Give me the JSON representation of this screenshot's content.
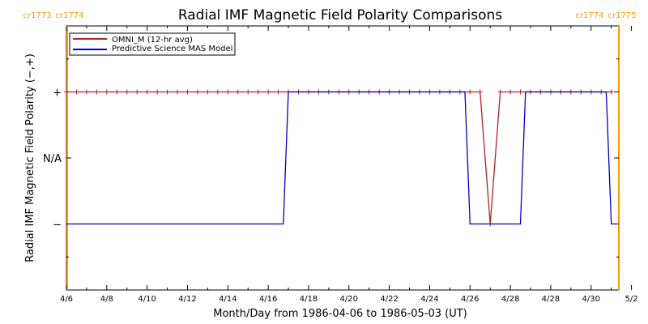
{
  "chart_data": {
    "type": "line",
    "title": "Radial IMF Magnetic Field Polarity Comparisons",
    "xlabel": "Month/Day from 1986-04-06 to 1986-05-03 (UT)",
    "ylabel": "Radial IMF Magnetic Field Polarity (−,+)",
    "xlim": [
      "1986-04-06",
      "1986-05-03"
    ],
    "ylim": [
      -2,
      2
    ],
    "y_ticks": [
      {
        "value": 1,
        "label": "+"
      },
      {
        "value": 0,
        "label": "N/A"
      },
      {
        "value": -1,
        "label": "−"
      }
    ],
    "x_ticks": [
      "4/6",
      "4/8",
      "4/10",
      "4/12",
      "4/14",
      "4/16",
      "4/18",
      "4/20",
      "4/22",
      "4/24",
      "4/26",
      "4/28",
      "4/28",
      "4/30",
      "5/2"
    ],
    "carrington_rotations": [
      {
        "date": "1986-04-06T01:00",
        "labels": [
          "cr1773",
          "cr1774"
        ],
        "label_side": "left"
      },
      {
        "date": "1986-05-03T09:00",
        "labels": [
          "cr1774",
          "cr1775"
        ],
        "label_side": "right"
      }
    ],
    "legend_position": "top-left",
    "series": [
      {
        "name": "OMNI_M (12-hr avg)",
        "color": "#b22222",
        "marker": "+",
        "points": [
          [
            "1986-04-06T00:00",
            1
          ],
          [
            "1986-04-06T12:00",
            1
          ],
          [
            "1986-04-07T00:00",
            1
          ],
          [
            "1986-04-07T12:00",
            1
          ],
          [
            "1986-04-08T00:00",
            1
          ],
          [
            "1986-04-08T12:00",
            1
          ],
          [
            "1986-04-09T00:00",
            1
          ],
          [
            "1986-04-09T12:00",
            1
          ],
          [
            "1986-04-10T00:00",
            1
          ],
          [
            "1986-04-10T12:00",
            1
          ],
          [
            "1986-04-11T00:00",
            1
          ],
          [
            "1986-04-11T12:00",
            1
          ],
          [
            "1986-04-12T00:00",
            1
          ],
          [
            "1986-04-12T12:00",
            1
          ],
          [
            "1986-04-13T00:00",
            1
          ],
          [
            "1986-04-13T12:00",
            1
          ],
          [
            "1986-04-14T00:00",
            1
          ],
          [
            "1986-04-14T12:00",
            1
          ],
          [
            "1986-04-15T00:00",
            1
          ],
          [
            "1986-04-15T12:00",
            1
          ],
          [
            "1986-04-16T00:00",
            1
          ],
          [
            "1986-04-16T12:00",
            1
          ],
          [
            "1986-04-17T00:00",
            1
          ],
          [
            "1986-04-17T12:00",
            1
          ],
          [
            "1986-04-18T00:00",
            1
          ],
          [
            "1986-04-18T12:00",
            1
          ],
          [
            "1986-04-19T00:00",
            1
          ],
          [
            "1986-04-19T12:00",
            1
          ],
          [
            "1986-04-20T00:00",
            1
          ],
          [
            "1986-04-20T12:00",
            1
          ],
          [
            "1986-04-21T00:00",
            1
          ],
          [
            "1986-04-21T12:00",
            1
          ],
          [
            "1986-04-22T00:00",
            1
          ],
          [
            "1986-04-22T12:00",
            1
          ],
          [
            "1986-04-23T00:00",
            1
          ],
          [
            "1986-04-23T12:00",
            1
          ],
          [
            "1986-04-24T00:00",
            1
          ],
          [
            "1986-04-24T12:00",
            1
          ],
          [
            "1986-04-25T00:00",
            1
          ],
          [
            "1986-04-25T12:00",
            1
          ],
          [
            "1986-04-26T00:00",
            1
          ],
          [
            "1986-04-26T12:00",
            1
          ],
          [
            "1986-04-27T00:00",
            -1
          ],
          [
            "1986-04-27T12:00",
            1
          ],
          [
            "1986-04-28T00:00",
            1
          ],
          [
            "1986-04-28T12:00",
            1
          ],
          [
            "1986-04-29T00:00",
            1
          ],
          [
            "1986-04-29T12:00",
            1
          ],
          [
            "1986-04-30T00:00",
            1
          ],
          [
            "1986-04-30T12:00",
            1
          ],
          [
            "1986-05-01T00:00",
            1
          ],
          [
            "1986-05-01T12:00",
            1
          ],
          [
            "1986-05-02T00:00",
            1
          ],
          [
            "1986-05-02T12:00",
            1
          ],
          [
            "1986-05-03T00:00",
            1
          ]
        ]
      },
      {
        "name": "Predictive Science MAS Model",
        "color": "#0000c8",
        "marker": "",
        "points": [
          [
            "1986-04-06T00:00",
            -1
          ],
          [
            "1986-04-16T18:00",
            -1
          ],
          [
            "1986-04-17T00:00",
            1
          ],
          [
            "1986-04-25T18:00",
            1
          ],
          [
            "1986-04-26T00:00",
            -1
          ],
          [
            "1986-04-28T12:00",
            -1
          ],
          [
            "1986-04-28T18:00",
            1
          ],
          [
            "1986-05-02T18:00",
            1
          ],
          [
            "1986-05-03T00:00",
            -1
          ],
          [
            "1986-05-03T06:00",
            -1
          ]
        ]
      }
    ]
  }
}
